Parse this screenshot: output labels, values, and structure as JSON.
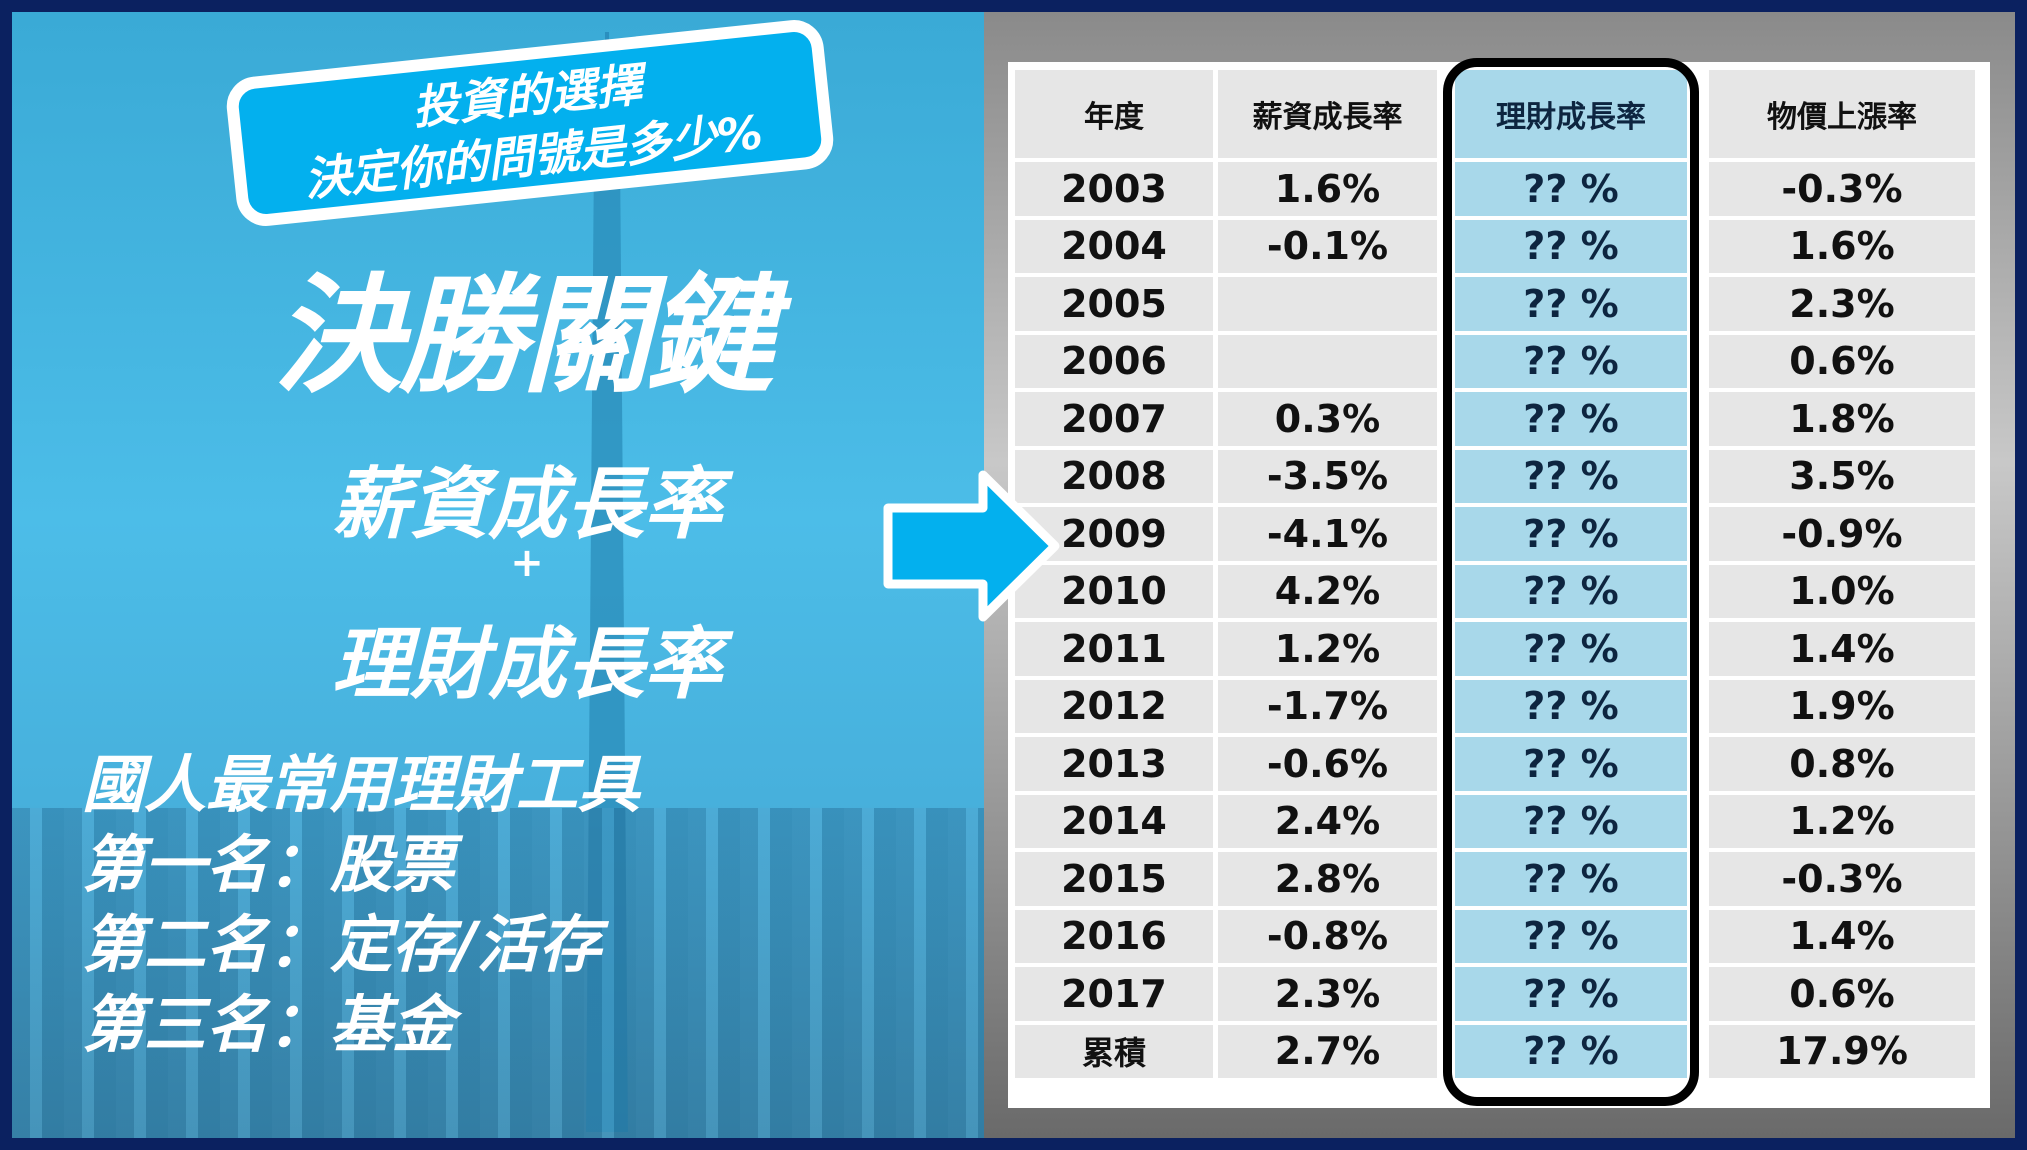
{
  "left": {
    "title": "決勝關鍵",
    "subtitle1": "薪資成長率",
    "plus": "+",
    "subtitle2": "理財成長率",
    "list": [
      "國人最常用理財工具",
      "第一名：股票",
      "第二名：定存/活存",
      "第三名：基金"
    ]
  },
  "callout": {
    "line1": "投資的選擇",
    "line2": "決定你的問號是多少%"
  },
  "table": {
    "headers": [
      "年度",
      "薪資成長率",
      "理財成長率",
      "物價上漲率"
    ],
    "rows": [
      [
        "2003",
        "1.6%",
        "?? %",
        "-0.3%"
      ],
      [
        "2004",
        "-0.1%",
        "?? %",
        "1.6%"
      ],
      [
        "2005",
        "",
        "?? %",
        "2.3%"
      ],
      [
        "2006",
        "",
        "?? %",
        "0.6%"
      ],
      [
        "2007",
        "0.3%",
        "?? %",
        "1.8%"
      ],
      [
        "2008",
        "-3.5%",
        "?? %",
        "3.5%"
      ],
      [
        "2009",
        "-4.1%",
        "?? %",
        "-0.9%"
      ],
      [
        "2010",
        "4.2%",
        "?? %",
        "1.0%"
      ],
      [
        "2011",
        "1.2%",
        "?? %",
        "1.4%"
      ],
      [
        "2012",
        "-1.7%",
        "?? %",
        "1.9%"
      ],
      [
        "2013",
        "-0.6%",
        "?? %",
        "0.8%"
      ],
      [
        "2014",
        "2.4%",
        "?? %",
        "1.2%"
      ],
      [
        "2015",
        "2.8%",
        "?? %",
        "-0.3%"
      ],
      [
        "2016",
        "-0.8%",
        "?? %",
        "1.4%"
      ],
      [
        "2017",
        "2.3%",
        "?? %",
        "0.6%"
      ],
      [
        "累積",
        "2.7%",
        "?? %",
        "17.9%"
      ]
    ]
  },
  "colors": {
    "border": "#0b2160",
    "accent": "#03b0ee",
    "highlight_column": "#a8d8ea"
  },
  "icons": {
    "arrow": "arrow-right-icon"
  }
}
